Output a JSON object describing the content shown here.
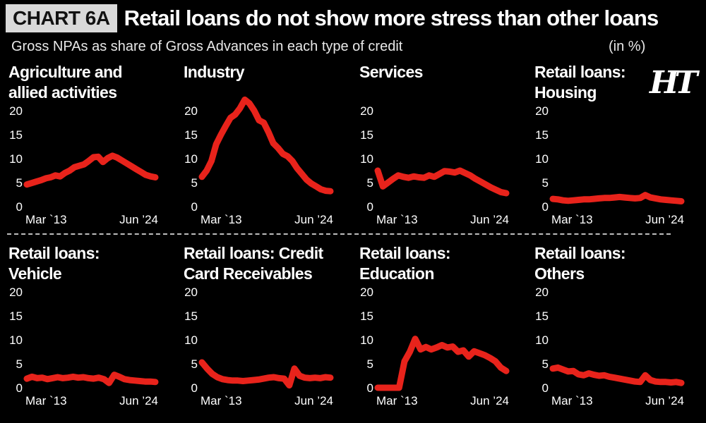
{
  "header": {
    "badge": "CHART 6A",
    "title": "Retail loans do not show more stress than other loans",
    "subtitle": "Gross NPAs as share of Gross Advances in each type of credit",
    "unit": "(in %)",
    "logo": "HT"
  },
  "colors": {
    "line": "#e8231b",
    "background": "#000000",
    "text": "#ffffff"
  },
  "chart_data": [
    {
      "type": "line",
      "title_lines": [
        "Agriculture and",
        "allied activities"
      ],
      "x_tick_labels": [
        "Mar `13",
        "Jun ’24"
      ],
      "y_ticks": [
        0,
        5,
        10,
        15,
        20
      ],
      "ylim": [
        0,
        20
      ],
      "values": [
        4.6,
        4.9,
        5.2,
        5.5,
        5.9,
        6.1,
        6.5,
        6.3,
        7.0,
        7.5,
        8.2,
        8.5,
        8.8,
        9.5,
        10.3,
        10.4,
        9.3,
        10.1,
        10.6,
        10.2,
        9.6,
        9.0,
        8.4,
        7.8,
        7.2,
        6.6,
        6.3,
        6.1
      ]
    },
    {
      "type": "line",
      "title_lines": [
        "Industry"
      ],
      "x_tick_labels": [
        "Mar `13",
        "Jun ’24"
      ],
      "y_ticks": [
        0,
        5,
        10,
        15,
        20
      ],
      "ylim": [
        0,
        20
      ],
      "values": [
        6.2,
        7.5,
        9.5,
        13.0,
        15.0,
        16.8,
        18.5,
        19.2,
        20.5,
        22.3,
        21.5,
        20.0,
        18.0,
        17.5,
        15.5,
        13.2,
        12.2,
        11.0,
        10.5,
        9.5,
        8.0,
        6.8,
        5.6,
        4.8,
        4.2,
        3.6,
        3.3,
        3.2
      ]
    },
    {
      "type": "line",
      "title_lines": [
        "Services"
      ],
      "x_tick_labels": [
        "Mar `13",
        "Jun ’24"
      ],
      "y_ticks": [
        0,
        5,
        10,
        15,
        20
      ],
      "ylim": [
        0,
        20
      ],
      "values": [
        7.5,
        4.2,
        5.0,
        5.8,
        6.5,
        6.2,
        6.0,
        6.3,
        6.1,
        6.0,
        6.5,
        6.2,
        6.8,
        7.4,
        7.3,
        7.1,
        7.5,
        7.0,
        6.5,
        5.8,
        5.2,
        4.6,
        4.0,
        3.5,
        3.0,
        2.8
      ]
    },
    {
      "type": "line",
      "title_lines": [
        "Retail loans:",
        "Housing"
      ],
      "x_tick_labels": [
        "Mar `13",
        "Jun ’24"
      ],
      "y_ticks": [
        0,
        5,
        10,
        15,
        20
      ],
      "ylim": [
        0,
        20
      ],
      "values": [
        1.6,
        1.5,
        1.3,
        1.2,
        1.3,
        1.4,
        1.5,
        1.5,
        1.6,
        1.7,
        1.8,
        1.8,
        1.9,
        2.0,
        1.9,
        1.8,
        1.7,
        1.8,
        2.4,
        1.9,
        1.7,
        1.5,
        1.4,
        1.3,
        1.2,
        1.1
      ]
    },
    {
      "type": "line",
      "title_lines": [
        "Retail loans:",
        "Vehicle"
      ],
      "x_tick_labels": [
        "Mar `13",
        "Jun ’24"
      ],
      "y_ticks": [
        0,
        5,
        10,
        15,
        20
      ],
      "ylim": [
        0,
        20
      ],
      "values": [
        1.9,
        2.3,
        2.0,
        2.1,
        1.8,
        2.0,
        2.2,
        2.0,
        2.1,
        2.3,
        2.1,
        2.2,
        2.0,
        1.9,
        2.1,
        1.8,
        1.0,
        2.7,
        2.3,
        1.8,
        1.6,
        1.5,
        1.4,
        1.3,
        1.3,
        1.2
      ]
    },
    {
      "type": "line",
      "title_lines": [
        "Retail loans: Credit",
        "Card Receivables"
      ],
      "x_tick_labels": [
        "Mar `13",
        "Jun ’24"
      ],
      "y_ticks": [
        0,
        5,
        10,
        15,
        20
      ],
      "ylim": [
        0,
        20
      ],
      "values": [
        5.3,
        4.0,
        2.9,
        2.2,
        1.8,
        1.6,
        1.5,
        1.5,
        1.4,
        1.5,
        1.6,
        1.7,
        1.9,
        2.1,
        2.2,
        2.0,
        1.9,
        0.5,
        4.0,
        2.5,
        2.1,
        2.0,
        2.1,
        2.0,
        2.2,
        2.1
      ]
    },
    {
      "type": "line",
      "title_lines": [
        "Retail loans:",
        "Education"
      ],
      "x_tick_labels": [
        "Mar `13",
        "Jun ’24"
      ],
      "y_ticks": [
        0,
        5,
        10,
        15,
        20
      ],
      "ylim": [
        0,
        20
      ],
      "values": [
        0.0,
        0.0,
        0.0,
        0.0,
        0.0,
        5.5,
        7.5,
        10.2,
        8.0,
        8.5,
        8.0,
        8.4,
        8.9,
        8.4,
        8.6,
        7.5,
        7.8,
        6.5,
        7.6,
        7.2,
        6.8,
        6.2,
        5.5,
        4.2,
        3.5
      ]
    },
    {
      "type": "line",
      "title_lines": [
        "Retail loans:",
        "Others"
      ],
      "x_tick_labels": [
        "Mar `13",
        "Jun ’24"
      ],
      "y_ticks": [
        0,
        5,
        10,
        15,
        20
      ],
      "ylim": [
        0,
        20
      ],
      "values": [
        4.0,
        4.2,
        3.8,
        3.4,
        3.5,
        2.8,
        2.6,
        3.0,
        2.7,
        2.5,
        2.6,
        2.3,
        2.1,
        1.9,
        1.7,
        1.5,
        1.3,
        1.2,
        2.6,
        1.6,
        1.3,
        1.2,
        1.2,
        1.1,
        1.2,
        1.0
      ]
    }
  ]
}
